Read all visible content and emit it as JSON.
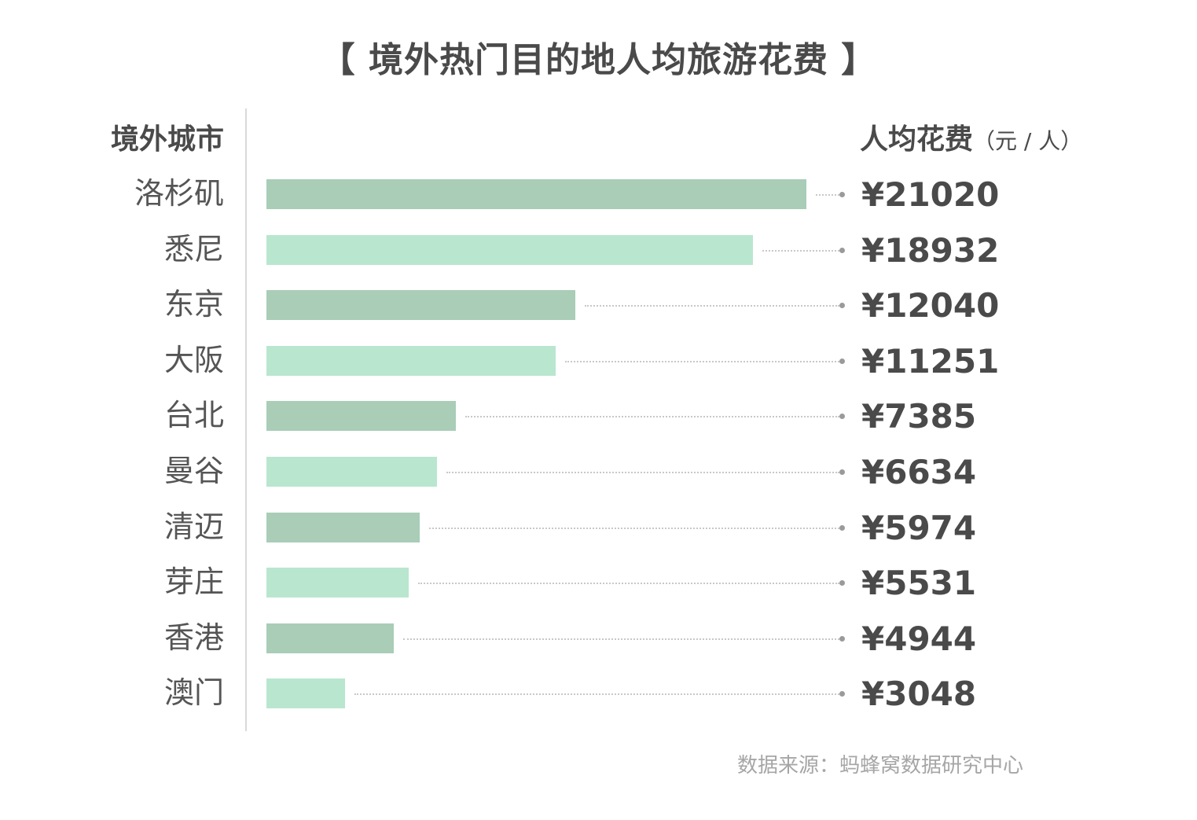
{
  "colors": {
    "bar_dark": "#a9cdb7",
    "bar_light": "#b9e6cf"
  },
  "chart_data": {
    "type": "bar",
    "orientation": "horizontal",
    "title": "【 境外热门目的地人均旅游花费 】",
    "category_header": "境外城市",
    "value_header": "人均花费",
    "value_unit": "（元 / 人）",
    "value_prefix": "¥",
    "categories": [
      "洛杉矶",
      "悉尼",
      "东京",
      "大阪",
      "台北",
      "曼谷",
      "清迈",
      "芽庄",
      "香港",
      "澳门"
    ],
    "values": [
      21020,
      18932,
      12040,
      11251,
      7385,
      6634,
      5974,
      5531,
      4944,
      3048
    ],
    "grid": false,
    "legend": "none",
    "source": "数据来源：蚂蜂窝数据研究中心"
  }
}
